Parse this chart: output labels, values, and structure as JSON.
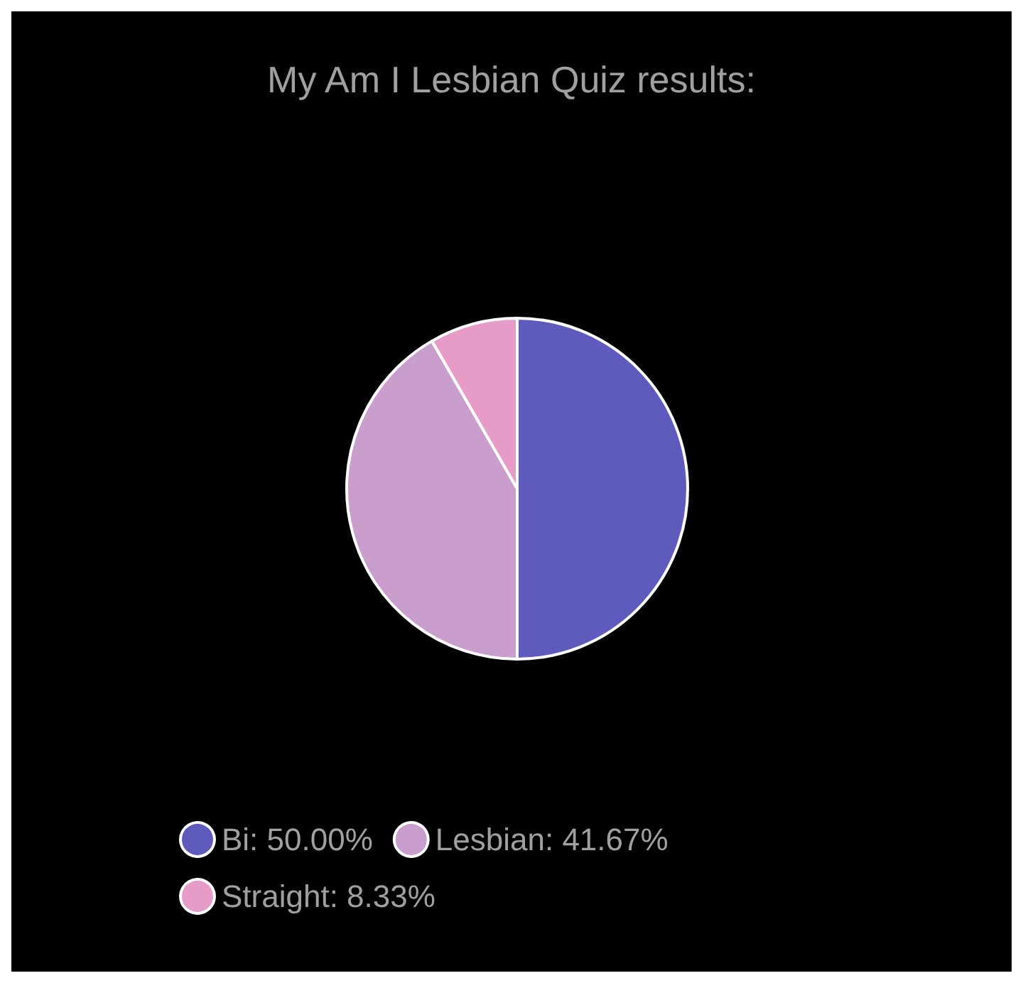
{
  "chart_data": {
    "type": "pie",
    "title": "My Am I Lesbian Quiz results:",
    "categories": [
      "Bi",
      "Lesbian",
      "Straight"
    ],
    "values": [
      50,
      41.67,
      8.33
    ],
    "value_labels": [
      "50.00%",
      "41.67%",
      "8.33%"
    ],
    "colors": [
      "#5f5bbd",
      "#c99ecc",
      "#e79cc7"
    ],
    "legend": "bottom"
  }
}
